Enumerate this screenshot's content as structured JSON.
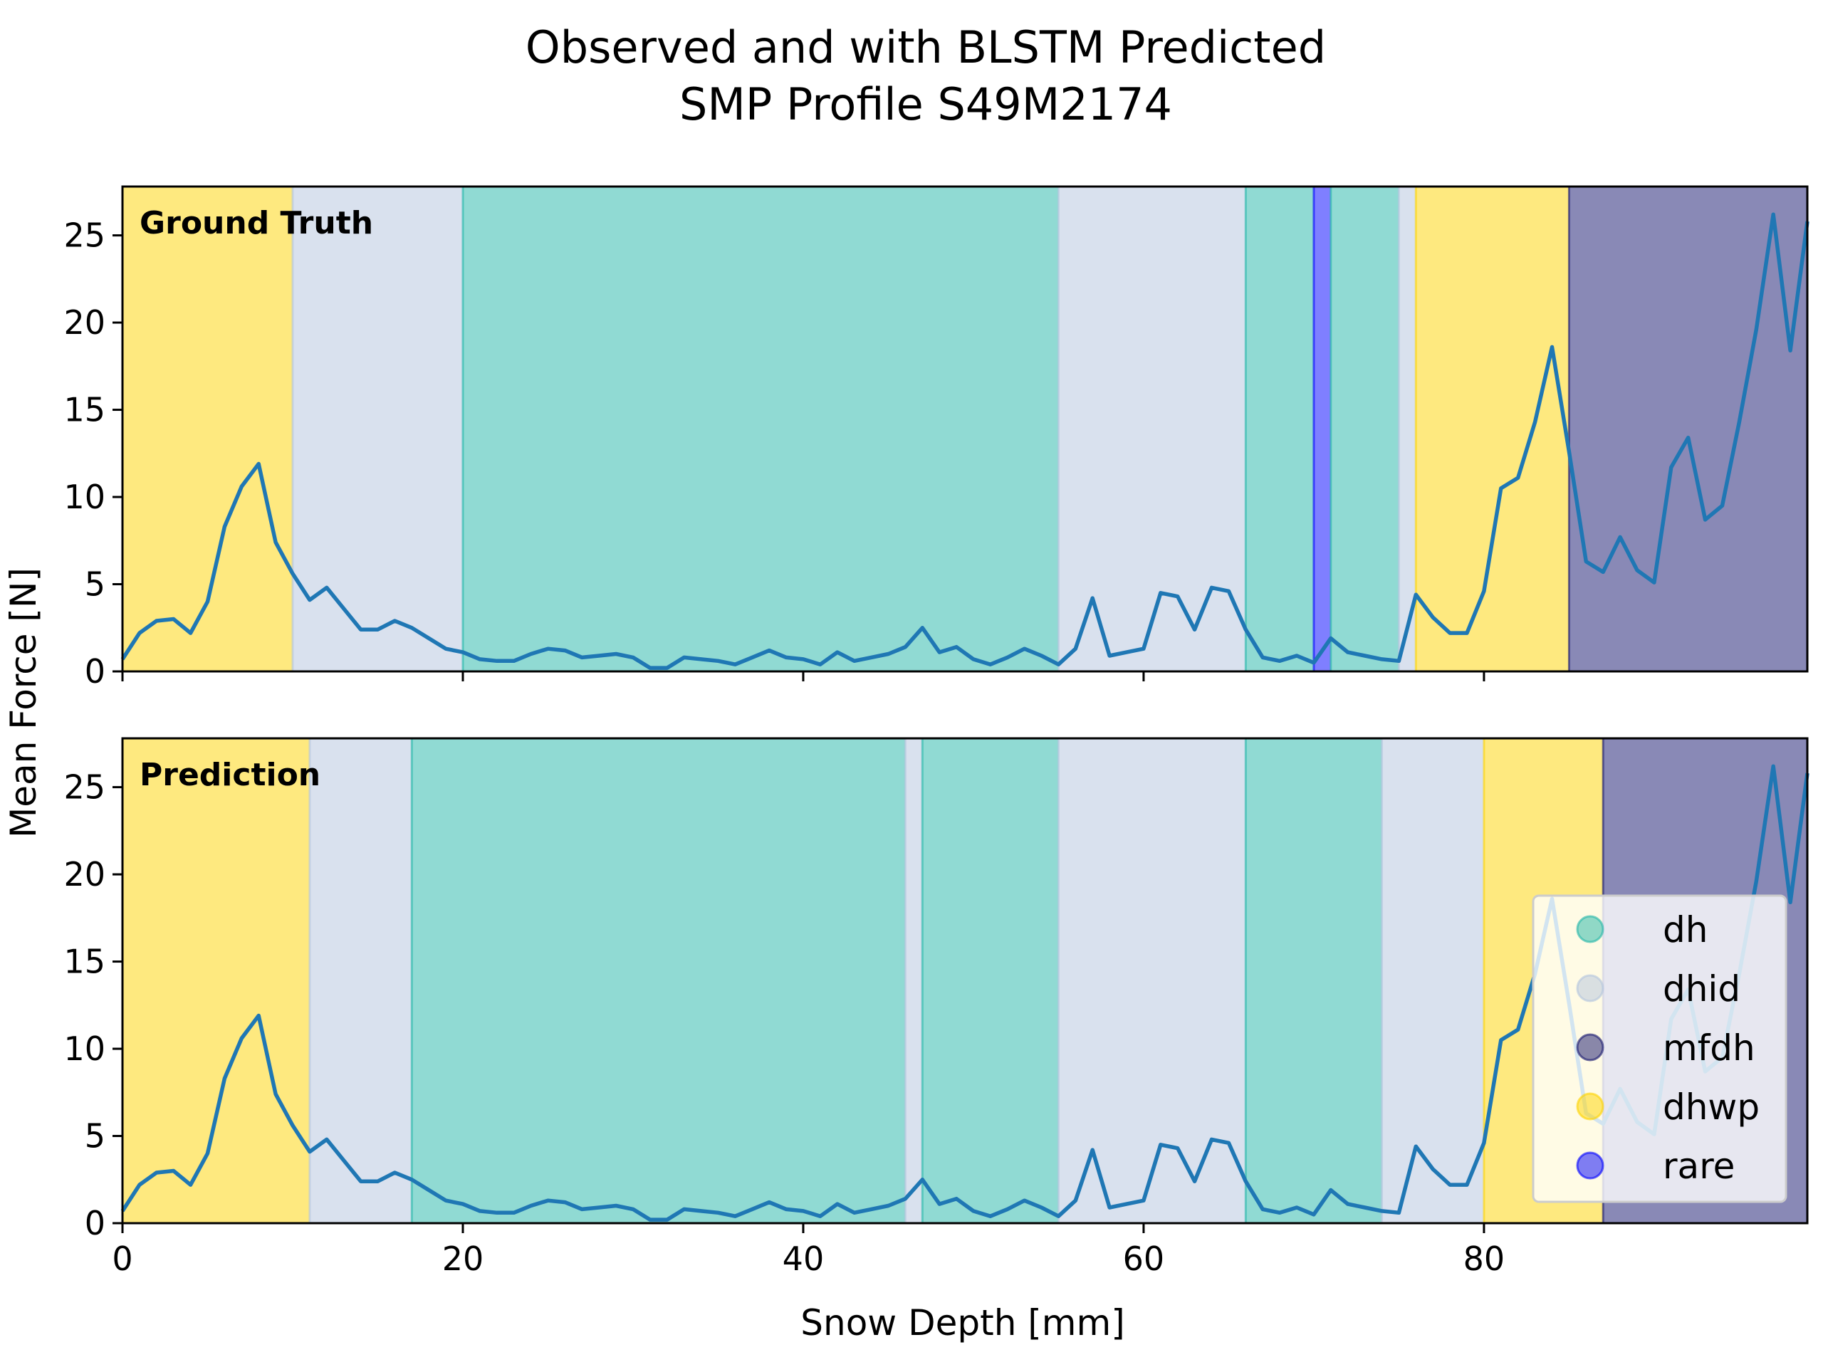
{
  "chart_data": {
    "type": "line",
    "title": [
      "Observed and with BLSTM Predicted",
      "SMP Profile S49M2174"
    ],
    "xlabel": "Snow Depth [mm]",
    "ylabel": "Mean Force [N]",
    "xlim": [
      0,
      99
    ],
    "ylim": [
      0,
      27.8
    ],
    "xticks": [
      0,
      20,
      40,
      60,
      80
    ],
    "xtick_labels": [
      "0",
      "20",
      "40",
      "60",
      "80"
    ],
    "yticks": [
      0,
      5,
      10,
      15,
      20,
      25
    ],
    "ytick_labels": [
      "0",
      "5",
      "10",
      "15",
      "20",
      "25"
    ],
    "grid": false,
    "line_color": "#1f77b4",
    "categories": [
      {
        "key": "dh",
        "label": "dh",
        "color": "#22b5a8"
      },
      {
        "key": "dhid",
        "label": "dhid",
        "color": "#b3c4de"
      },
      {
        "key": "mfdh",
        "label": "mfdh",
        "color": "#14146e"
      },
      {
        "key": "dhwp",
        "label": "dhwp",
        "color": "#fdd400"
      },
      {
        "key": "rare",
        "label": "rare",
        "color": "#0000ff"
      }
    ],
    "x": [
      0,
      1,
      2,
      3,
      4,
      5,
      6,
      7,
      8,
      9,
      10,
      11,
      12,
      13,
      14,
      15,
      16,
      17,
      18,
      19,
      20,
      21,
      22,
      23,
      24,
      25,
      26,
      27,
      28,
      29,
      30,
      31,
      32,
      33,
      34,
      35,
      36,
      37,
      38,
      39,
      40,
      41,
      42,
      43,
      44,
      45,
      46,
      47,
      48,
      49,
      50,
      51,
      52,
      53,
      54,
      55,
      56,
      57,
      58,
      59,
      60,
      61,
      62,
      63,
      64,
      65,
      66,
      67,
      68,
      69,
      70,
      71,
      72,
      73,
      74,
      75,
      76,
      77,
      78,
      79,
      80,
      81,
      82,
      83,
      84,
      85,
      86,
      87,
      88,
      89,
      90,
      91,
      92,
      93,
      94,
      95,
      96,
      97,
      98,
      99
    ],
    "series": [
      {
        "values": [
          0.7,
          2.2,
          2.9,
          3.0,
          2.2,
          4.0,
          8.3,
          10.6,
          11.9,
          7.4,
          5.6,
          4.1,
          4.8,
          3.6,
          2.4,
          2.4,
          2.9,
          2.5,
          1.9,
          1.3,
          1.1,
          0.7,
          0.6,
          0.6,
          1.0,
          1.3,
          1.2,
          0.8,
          0.9,
          1.0,
          0.8,
          0.2,
          0.2,
          0.8,
          0.7,
          0.6,
          0.4,
          0.8,
          1.2,
          0.8,
          0.7,
          0.4,
          1.1,
          0.6,
          0.8,
          1.0,
          1.4,
          2.5,
          1.1,
          1.4,
          0.7,
          0.4,
          0.8,
          1.3,
          0.9,
          0.4,
          1.3,
          4.2,
          0.9,
          1.1,
          1.3,
          4.5,
          4.3,
          2.4,
          4.8,
          4.6,
          2.4,
          0.8,
          0.6,
          0.9,
          0.5,
          1.9,
          1.1,
          0.9,
          0.7,
          0.6,
          4.4,
          3.1,
          2.2,
          2.2,
          4.6,
          10.5,
          11.1,
          14.3,
          18.6,
          12.6,
          6.3,
          5.7,
          7.7,
          5.8,
          5.1,
          11.7,
          13.4,
          8.7,
          9.5,
          14.3,
          19.6,
          26.2,
          18.4,
          25.8
        ]
      }
    ],
    "panels": [
      {
        "label": "Ground Truth",
        "segments": [
          {
            "class": "dhwp",
            "start": 0,
            "end": 10
          },
          {
            "class": "dhid",
            "start": 10,
            "end": 20
          },
          {
            "class": "dh",
            "start": 20,
            "end": 55
          },
          {
            "class": "dhid",
            "start": 55,
            "end": 66
          },
          {
            "class": "dh",
            "start": 66,
            "end": 70
          },
          {
            "class": "rare",
            "start": 70,
            "end": 71
          },
          {
            "class": "dh",
            "start": 71,
            "end": 75
          },
          {
            "class": "dhid",
            "start": 75,
            "end": 76
          },
          {
            "class": "dhwp",
            "start": 76,
            "end": 85
          },
          {
            "class": "mfdh",
            "start": 85,
            "end": 99
          }
        ]
      },
      {
        "label": "Prediction",
        "segments": [
          {
            "class": "dhwp",
            "start": 0,
            "end": 11
          },
          {
            "class": "dhid",
            "start": 11,
            "end": 17
          },
          {
            "class": "dh",
            "start": 17,
            "end": 46
          },
          {
            "class": "dhid",
            "start": 46,
            "end": 47
          },
          {
            "class": "dh",
            "start": 47,
            "end": 55
          },
          {
            "class": "dhid",
            "start": 55,
            "end": 66
          },
          {
            "class": "dh",
            "start": 66,
            "end": 74
          },
          {
            "class": "dhid",
            "start": 74,
            "end": 80
          },
          {
            "class": "dhwp",
            "start": 80,
            "end": 87
          },
          {
            "class": "mfdh",
            "start": 87,
            "end": 99
          }
        ]
      }
    ],
    "legend": {
      "placement": "lower right of bottom panel",
      "items": [
        "dh",
        "dhid",
        "mfdh",
        "dhwp",
        "rare"
      ]
    }
  }
}
